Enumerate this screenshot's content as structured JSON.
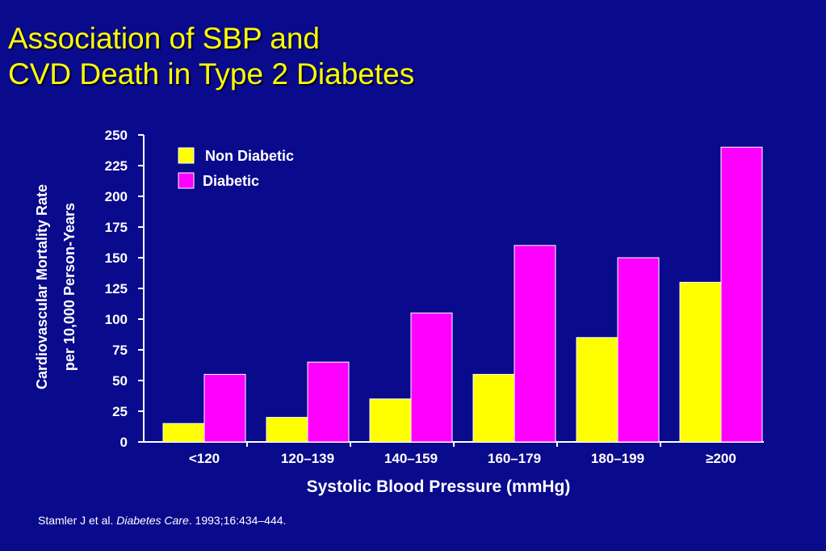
{
  "slide": {
    "title_line1": "Association of SBP and",
    "title_line2": "CVD Death in Type 2 Diabetes",
    "citation_pre": "Stamler J et al. ",
    "citation_journal": "Diabetes Care",
    "citation_post": ". 1993;16:434–444."
  },
  "colors": {
    "background": "#0A0A8C",
    "title": "#FFFF00",
    "non_diabetic": "#FFFF00",
    "diabetic": "#FF00FF",
    "axis": "#FFFFFF"
  },
  "chart_data": {
    "type": "bar",
    "categories": [
      "<120",
      "120–139",
      "140–159",
      "160–179",
      "180–199",
      "≥200"
    ],
    "series": [
      {
        "name": "Non Diabetic",
        "values": [
          15,
          20,
          35,
          55,
          85,
          130
        ]
      },
      {
        "name": "Diabetic",
        "values": [
          55,
          65,
          105,
          160,
          150,
          240
        ]
      }
    ],
    "ylabel_line1": "Cardiovascular Mortality Rate",
    "ylabel_line2": "per 10,000 Person-Years",
    "xlabel": "Systolic Blood Pressure (mmHg)",
    "ylim": [
      0,
      250
    ],
    "yticks": [
      0,
      25,
      50,
      75,
      100,
      125,
      150,
      175,
      200,
      225,
      250
    ],
    "legend_position": "top-left",
    "grid": false
  }
}
